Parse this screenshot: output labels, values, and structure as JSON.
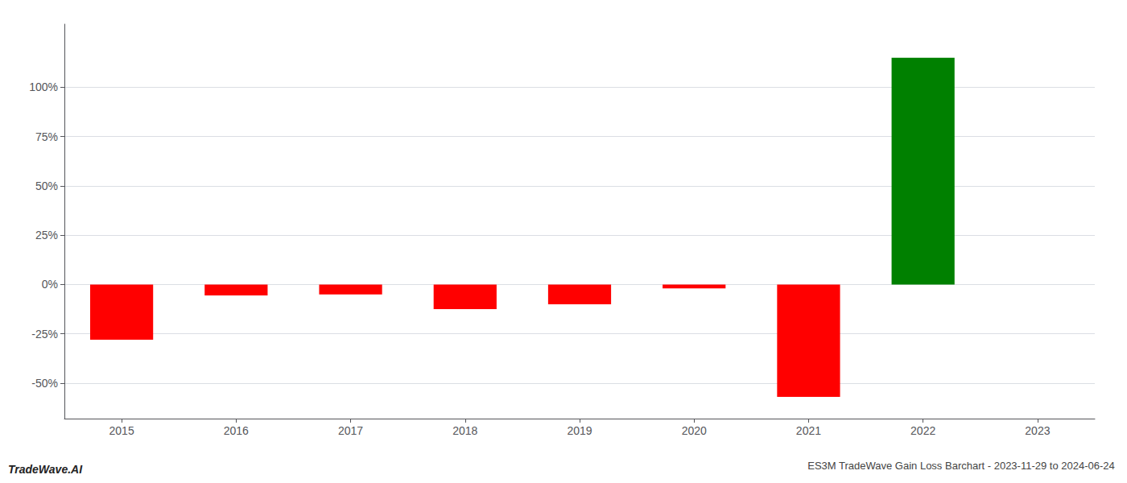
{
  "chart_data": {
    "type": "bar",
    "title": "ES3M TradeWave Gain Loss Barchart - 2023-11-29 to 2024-06-24",
    "annotations": [
      "TradeWave.AI"
    ],
    "categories": [
      "2015",
      "2016",
      "2017",
      "2018",
      "2019",
      "2020",
      "2021",
      "2022",
      "2023"
    ],
    "values": [
      -28.0,
      -5.5,
      -5.0,
      -12.5,
      -10.0,
      -2.0,
      -57.0,
      115.0,
      0.0
    ],
    "colors": [
      "#ff0000",
      "#ff0000",
      "#ff0000",
      "#ff0000",
      "#ff0000",
      "#ff0000",
      "#ff0000",
      "#008000",
      "#ffffff"
    ],
    "ylim": [
      -68,
      132
    ],
    "yticks": [
      {
        "value": -50,
        "label": "-50%"
      },
      {
        "value": -25,
        "label": "-25%"
      },
      {
        "value": 0,
        "label": "0%"
      },
      {
        "value": 25,
        "label": "25%"
      },
      {
        "value": 50,
        "label": "50%"
      },
      {
        "value": 75,
        "label": "75%"
      },
      {
        "value": 100,
        "label": "100%"
      }
    ],
    "grid": true
  }
}
